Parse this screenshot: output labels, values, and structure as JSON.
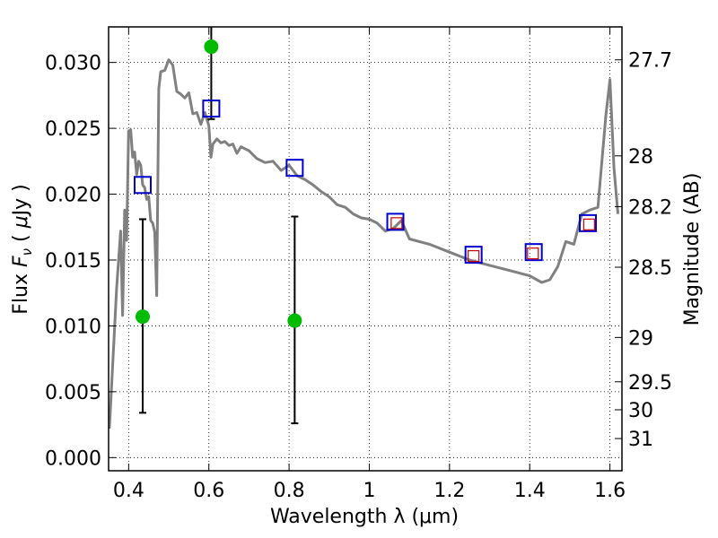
{
  "chart_data": {
    "type": "line",
    "title": "",
    "xlabel": "Wavelength  λ (μm)",
    "ylabel_left_parts": [
      "Flux ",
      "F",
      "ν",
      " ( ",
      "μ",
      "Jy )"
    ],
    "ylabel_right": "Magnitude (AB)",
    "xlim": [
      0.35,
      1.63
    ],
    "ylim": [
      -0.001,
      0.0327
    ],
    "grid": true,
    "x_ticks": [
      {
        "v": 0.4,
        "label": "0.4"
      },
      {
        "v": 0.6,
        "label": "0.6"
      },
      {
        "v": 0.8,
        "label": "0.8"
      },
      {
        "v": 1.0,
        "label": "1"
      },
      {
        "v": 1.2,
        "label": "1.2"
      },
      {
        "v": 1.4,
        "label": "1.4"
      },
      {
        "v": 1.6,
        "label": "1.6"
      }
    ],
    "y_ticks": [
      {
        "v": 0.0,
        "label": "0.000"
      },
      {
        "v": 0.005,
        "label": "0.005"
      },
      {
        "v": 0.01,
        "label": "0.010"
      },
      {
        "v": 0.015,
        "label": "0.015"
      },
      {
        "v": 0.02,
        "label": "0.020"
      },
      {
        "v": 0.025,
        "label": "0.025"
      },
      {
        "v": 0.03,
        "label": "0.030"
      }
    ],
    "right_ticks": [
      {
        "mag": 27.7,
        "label": "27.7"
      },
      {
        "mag": 28,
        "label": "28"
      },
      {
        "mag": 28.2,
        "label": "28.2"
      },
      {
        "mag": 28.5,
        "label": "28.5"
      },
      {
        "mag": 29,
        "label": "29"
      },
      {
        "mag": 29.5,
        "label": "29.5"
      },
      {
        "mag": 30,
        "label": "30"
      },
      {
        "mag": 31,
        "label": "31"
      }
    ],
    "series": [
      {
        "kind": "sed_model",
        "color": "#808080",
        "x": [
          0.352,
          0.37,
          0.38,
          0.385,
          0.39,
          0.395,
          0.4,
          0.405,
          0.41,
          0.415,
          0.42,
          0.425,
          0.43,
          0.435,
          0.44,
          0.445,
          0.45,
          0.455,
          0.46,
          0.465,
          0.47,
          0.475,
          0.48,
          0.49,
          0.5,
          0.51,
          0.52,
          0.53,
          0.54,
          0.55,
          0.56,
          0.57,
          0.58,
          0.59,
          0.6,
          0.605,
          0.61,
          0.62,
          0.63,
          0.64,
          0.65,
          0.66,
          0.67,
          0.68,
          0.7,
          0.72,
          0.74,
          0.76,
          0.78,
          0.8,
          0.82,
          0.84,
          0.86,
          0.88,
          0.9,
          0.92,
          0.94,
          0.96,
          0.98,
          1.0,
          1.02,
          1.04,
          1.06,
          1.08,
          1.1,
          1.15,
          1.2,
          1.25,
          1.3,
          1.35,
          1.4,
          1.43,
          1.45,
          1.47,
          1.49,
          1.51,
          1.53,
          1.55,
          1.57,
          1.59,
          1.6,
          1.61,
          1.62
        ],
        "y": [
          0.0022,
          0.0128,
          0.0172,
          0.0108,
          0.0188,
          0.0165,
          0.0248,
          0.0249,
          0.0228,
          0.0232,
          0.0215,
          0.0225,
          0.0222,
          0.0207,
          0.0205,
          0.0196,
          0.0198,
          0.018,
          0.0178,
          0.0171,
          0.0123,
          0.028,
          0.0293,
          0.0294,
          0.0302,
          0.0298,
          0.0278,
          0.0276,
          0.0273,
          0.0277,
          0.0261,
          0.0262,
          0.0253,
          0.0262,
          0.0252,
          0.0228,
          0.0238,
          0.0242,
          0.0239,
          0.024,
          0.0237,
          0.0238,
          0.0231,
          0.0236,
          0.0233,
          0.0227,
          0.0224,
          0.0225,
          0.0218,
          0.0222,
          0.0214,
          0.0211,
          0.0207,
          0.0202,
          0.0198,
          0.0192,
          0.019,
          0.0185,
          0.0182,
          0.0181,
          0.0178,
          0.0172,
          0.0174,
          0.018,
          0.0166,
          0.0162,
          0.0156,
          0.015,
          0.0146,
          0.0142,
          0.0138,
          0.0133,
          0.0135,
          0.0145,
          0.0164,
          0.0162,
          0.0185,
          0.0188,
          0.019,
          0.026,
          0.0287,
          0.022,
          0.0185
        ]
      },
      {
        "kind": "observed",
        "color": "#00bb00",
        "points": [
          {
            "x": 0.435,
            "y": 0.0107,
            "err_lo": 0.0034,
            "err_hi": 0.0181
          },
          {
            "x": 0.606,
            "y": 0.0312,
            "err_lo": 0.0257,
            "err_hi": 0.033
          },
          {
            "x": 0.814,
            "y": 0.0104,
            "err_lo": 0.0026,
            "err_hi": 0.0183
          }
        ]
      },
      {
        "kind": "model_band",
        "color": "#0000cc",
        "points": [
          {
            "x": 0.435,
            "y": 0.0207
          },
          {
            "x": 0.606,
            "y": 0.0265
          },
          {
            "x": 0.814,
            "y": 0.022
          },
          {
            "x": 1.065,
            "y": 0.0179
          },
          {
            "x": 1.26,
            "y": 0.0154
          },
          {
            "x": 1.41,
            "y": 0.0156
          },
          {
            "x": 1.545,
            "y": 0.0178
          }
        ]
      },
      {
        "kind": "nir_inner",
        "color": "#cc0000",
        "points": [
          {
            "x": 1.068,
            "y": 0.0178
          },
          {
            "x": 1.26,
            "y": 0.0153
          },
          {
            "x": 1.408,
            "y": 0.0155
          },
          {
            "x": 1.548,
            "y": 0.0177
          }
        ]
      }
    ]
  }
}
